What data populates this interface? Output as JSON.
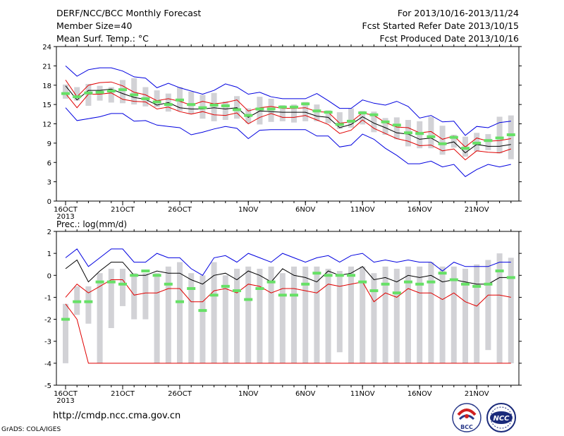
{
  "header": {
    "title": "DERF/NCC/BCC Monthly Forecast",
    "member_size": "Member Size=40",
    "variable": "Mean Surf. Temp.: °C",
    "period": "For 2013/10/16-2013/11/24",
    "start_ref": "Fcst Started Refer Date 2013/10/15",
    "produced": "Fcst Produced Date 2013/10/16"
  },
  "footer": {
    "url": "http://cmdp.ncc.cma.gov.cn",
    "grads": "GrADS: COLA/IGES"
  },
  "logos": [
    {
      "name": "bcc-logo",
      "text": "BCC"
    },
    {
      "name": "ncc-logo",
      "text": "NCC"
    }
  ],
  "colors": {
    "box": "#d2d2d6",
    "green": "#66e066",
    "blue": "#0000e0",
    "red": "#e00000",
    "black": "#000000"
  },
  "chart_data": [
    {
      "type": "line",
      "title": "Mean Surf. Temp.: °C",
      "x": [
        "2013-10-16",
        "2013-10-17",
        "2013-10-18",
        "2013-10-19",
        "2013-10-20",
        "2013-10-21",
        "2013-10-22",
        "2013-10-23",
        "2013-10-24",
        "2013-10-25",
        "2013-10-26",
        "2013-10-27",
        "2013-10-28",
        "2013-10-29",
        "2013-10-30",
        "2013-10-31",
        "2013-11-01",
        "2013-11-02",
        "2013-11-03",
        "2013-11-04",
        "2013-11-05",
        "2013-11-06",
        "2013-11-07",
        "2013-11-08",
        "2013-11-09",
        "2013-11-10",
        "2013-11-11",
        "2013-11-12",
        "2013-11-13",
        "2013-11-14",
        "2013-11-15",
        "2013-11-16",
        "2013-11-17",
        "2013-11-18",
        "2013-11-19",
        "2013-11-20",
        "2013-11-21",
        "2013-11-22",
        "2013-11-23",
        "2013-11-24"
      ],
      "ylim": [
        0,
        24
      ],
      "yticks": [
        0,
        3,
        6,
        9,
        12,
        15,
        18,
        21,
        24
      ],
      "xtick_labels": [
        {
          "x": "2013-10-16",
          "label": "16OCT",
          "sub": "2013"
        },
        {
          "x": "2013-10-21",
          "label": "21OCT"
        },
        {
          "x": "2013-10-26",
          "label": "26OCT"
        },
        {
          "x": "2013-11-01",
          "label": "1NOV"
        },
        {
          "x": "2013-11-06",
          "label": "6NOV"
        },
        {
          "x": "2013-11-11",
          "label": "11NOV"
        },
        {
          "x": "2013-11-16",
          "label": "16NOV"
        },
        {
          "x": "2013-11-21",
          "label": "21NOV"
        }
      ],
      "box_low": [
        15.9,
        15.6,
        14.8,
        15.6,
        15.3,
        15.2,
        15.0,
        14.7,
        14.6,
        13.9,
        14.0,
        13.5,
        12.8,
        12.4,
        12.6,
        12.8,
        12.1,
        11.9,
        12.3,
        12.4,
        12.2,
        12.4,
        12.4,
        12.1,
        11.2,
        11.4,
        11.9,
        10.7,
        10.3,
        9.6,
        8.5,
        8.2,
        8.2,
        7.2,
        8.3,
        6.9,
        7.7,
        7.9,
        7.4,
        6.5
      ],
      "box_high": [
        18.1,
        17.7,
        18.2,
        17.9,
        17.7,
        18.8,
        19.1,
        17.7,
        17.2,
        16.7,
        17.7,
        17.0,
        16.5,
        16.8,
        15.5,
        16.3,
        14.4,
        16.2,
        15.9,
        14.9,
        15.0,
        15.4,
        15.0,
        14.1,
        13.8,
        14.4,
        14.0,
        13.9,
        12.9,
        13.0,
        12.6,
        12.4,
        13.1,
        11.7,
        10.3,
        10.0,
        10.6,
        10.4,
        13.1,
        13.3
      ],
      "series": [
        {
          "role": "max",
          "color": "blue",
          "values": [
            21.0,
            19.4,
            20.4,
            20.7,
            20.7,
            20.2,
            19.3,
            19.1,
            17.6,
            18.3,
            17.6,
            17.1,
            16.6,
            17.2,
            18.2,
            17.7,
            16.6,
            16.9,
            16.2,
            15.9,
            15.9,
            15.9,
            16.7,
            15.6,
            14.4,
            14.4,
            15.7,
            15.2,
            14.9,
            15.5,
            14.7,
            12.9,
            13.3,
            12.3,
            12.4,
            10.2,
            11.6,
            11.4,
            12.2,
            12.4
          ]
        },
        {
          "role": "upper",
          "color": "red",
          "values": [
            18.8,
            16.2,
            18.0,
            18.4,
            18.5,
            17.9,
            16.9,
            16.5,
            15.6,
            15.9,
            15.5,
            14.9,
            15.5,
            15.1,
            15.3,
            15.7,
            14.0,
            14.5,
            14.7,
            14.4,
            14.4,
            14.5,
            13.9,
            13.8,
            12.1,
            12.3,
            13.7,
            13.3,
            12.2,
            11.5,
            11.4,
            10.6,
            10.8,
            9.6,
            10.1,
            8.4,
            9.8,
            9.3,
            9.4,
            9.7
          ]
        },
        {
          "role": "mean",
          "color": "black",
          "values": [
            17.9,
            15.7,
            17.2,
            17.2,
            17.4,
            16.7,
            16.1,
            15.8,
            14.9,
            15.3,
            14.5,
            14.3,
            14.3,
            14.5,
            14.3,
            14.5,
            13.0,
            14.0,
            13.9,
            13.8,
            13.8,
            13.8,
            13.2,
            13.0,
            11.4,
            11.9,
            13.1,
            12.1,
            11.4,
            10.6,
            10.4,
            9.6,
            9.8,
            8.8,
            9.2,
            7.5,
            8.8,
            8.5,
            8.5,
            8.8
          ]
        },
        {
          "role": "lower",
          "color": "red",
          "values": [
            16.7,
            14.5,
            16.6,
            16.6,
            16.8,
            15.8,
            15.5,
            15.4,
            14.3,
            14.6,
            13.9,
            13.5,
            13.9,
            13.4,
            13.3,
            13.7,
            12.0,
            13.0,
            13.6,
            13.0,
            13.0,
            13.3,
            12.6,
            11.9,
            10.5,
            11.0,
            12.6,
            11.3,
            10.5,
            9.7,
            9.3,
            8.6,
            8.7,
            7.8,
            8.1,
            6.4,
            7.8,
            7.6,
            7.5,
            8.1
          ]
        },
        {
          "role": "min",
          "color": "blue",
          "values": [
            14.5,
            12.5,
            12.8,
            13.1,
            13.6,
            13.6,
            12.4,
            12.5,
            11.8,
            11.6,
            11.4,
            10.3,
            10.7,
            11.2,
            11.6,
            11.3,
            9.7,
            11.0,
            11.1,
            11.1,
            11.1,
            11.1,
            10.1,
            10.1,
            8.4,
            8.7,
            10.4,
            9.6,
            8.2,
            7.1,
            5.8,
            5.8,
            6.2,
            5.3,
            5.7,
            3.8,
            4.9,
            5.7,
            5.3,
            5.7
          ]
        },
        {
          "role": "green",
          "color": "green",
          "values": [
            16.7,
            16.2,
            16.8,
            16.9,
            17.1,
            17.3,
            16.5,
            15.9,
            15.4,
            15.0,
            15.7,
            15.0,
            14.5,
            14.9,
            14.8,
            14.2,
            13.3,
            14.3,
            14.3,
            14.6,
            14.6,
            15.1,
            14.0,
            13.8,
            11.9,
            12.4,
            13.7,
            13.4,
            12.3,
            11.8,
            10.6,
            10.5,
            10.0,
            8.9,
            9.9,
            8.2,
            9.0,
            9.4,
            9.8,
            10.3
          ]
        }
      ]
    },
    {
      "type": "line",
      "title": "Prec.: log(mm/d)",
      "x": [
        "2013-10-16",
        "2013-10-17",
        "2013-10-18",
        "2013-10-19",
        "2013-10-20",
        "2013-10-21",
        "2013-10-22",
        "2013-10-23",
        "2013-10-24",
        "2013-10-25",
        "2013-10-26",
        "2013-10-27",
        "2013-10-28",
        "2013-10-29",
        "2013-10-30",
        "2013-10-31",
        "2013-11-01",
        "2013-11-02",
        "2013-11-03",
        "2013-11-04",
        "2013-11-05",
        "2013-11-06",
        "2013-11-07",
        "2013-11-08",
        "2013-11-09",
        "2013-11-10",
        "2013-11-11",
        "2013-11-12",
        "2013-11-13",
        "2013-11-14",
        "2013-11-15",
        "2013-11-16",
        "2013-11-17",
        "2013-11-18",
        "2013-11-19",
        "2013-11-20",
        "2013-11-21",
        "2013-11-22",
        "2013-11-23",
        "2013-11-24"
      ],
      "ylim": [
        -5,
        2
      ],
      "yticks": [
        -5,
        -4,
        -3,
        -2,
        -1,
        0,
        1,
        2
      ],
      "xtick_labels": [
        {
          "x": "2013-10-16",
          "label": "16OCT",
          "sub": "2013"
        },
        {
          "x": "2013-10-21",
          "label": "21OCT"
        },
        {
          "x": "2013-10-26",
          "label": "26OCT"
        },
        {
          "x": "2013-11-01",
          "label": "1NOV"
        },
        {
          "x": "2013-11-06",
          "label": "6NOV"
        },
        {
          "x": "2013-11-11",
          "label": "11NOV"
        },
        {
          "x": "2013-11-16",
          "label": "16NOV"
        },
        {
          "x": "2013-11-21",
          "label": "21NOV"
        }
      ],
      "box_low": [
        -4.0,
        -1.8,
        -2.2,
        -4.0,
        -2.4,
        -1.4,
        -2.0,
        -2.0,
        -4.0,
        -4.0,
        -4.0,
        -4.0,
        -4.0,
        -4.0,
        -4.0,
        -4.0,
        -4.0,
        -4.0,
        -4.0,
        -4.0,
        -4.0,
        -4.0,
        -4.0,
        -4.0,
        -3.5,
        -4.0,
        -4.0,
        -4.0,
        -4.0,
        -4.0,
        -4.0,
        -4.0,
        -4.0,
        -4.0,
        -4.0,
        -4.0,
        -4.0,
        -3.4,
        -4.0,
        -4.0
      ],
      "box_high": [
        -1.3,
        -0.5,
        -0.5,
        0.1,
        0.3,
        0.3,
        0.1,
        0.1,
        0.1,
        0.4,
        0.6,
        0.1,
        0.0,
        0.6,
        0.0,
        0.3,
        0.4,
        0.3,
        0.4,
        0.1,
        0.4,
        0.4,
        0.4,
        0.3,
        0.2,
        0.4,
        0.4,
        0.1,
        0.4,
        0.3,
        0.4,
        0.4,
        0.6,
        0.4,
        0.4,
        0.3,
        0.5,
        0.7,
        1.0,
        0.8
      ],
      "series": [
        {
          "role": "max",
          "color": "blue",
          "values": [
            0.8,
            1.2,
            0.4,
            0.8,
            1.2,
            1.2,
            0.6,
            0.6,
            1.0,
            0.8,
            0.8,
            0.3,
            0.0,
            0.8,
            0.9,
            0.6,
            1.0,
            0.8,
            0.6,
            1.0,
            0.8,
            0.6,
            0.8,
            0.9,
            0.6,
            0.9,
            1.0,
            0.6,
            0.7,
            0.6,
            0.7,
            0.6,
            0.6,
            0.2,
            0.6,
            0.4,
            0.4,
            0.4,
            0.6,
            0.6
          ]
        },
        {
          "role": "upper",
          "color": "black",
          "values": [
            0.3,
            0.7,
            -0.3,
            0.2,
            0.6,
            0.6,
            0.0,
            0.0,
            0.2,
            0.1,
            0.1,
            -0.2,
            -0.4,
            0.0,
            0.1,
            -0.2,
            0.2,
            0.0,
            -0.3,
            0.3,
            0.0,
            -0.1,
            -0.3,
            0.2,
            0.0,
            0.1,
            0.4,
            -0.2,
            -0.1,
            -0.3,
            0.0,
            -0.1,
            0.0,
            -0.3,
            -0.2,
            -0.3,
            -0.4,
            -0.4,
            -0.1,
            -0.1
          ]
        },
        {
          "role": "lower",
          "color": "red",
          "values": [
            -1.0,
            -0.4,
            -0.8,
            -0.5,
            -0.2,
            -0.2,
            -0.9,
            -0.8,
            -0.8,
            -0.6,
            -0.6,
            -1.2,
            -1.2,
            -0.7,
            -0.6,
            -0.8,
            -0.4,
            -0.5,
            -0.8,
            -0.6,
            -0.6,
            -0.7,
            -0.8,
            -0.4,
            -0.5,
            -0.4,
            -0.3,
            -1.2,
            -0.8,
            -1.0,
            -0.6,
            -0.8,
            -0.8,
            -1.1,
            -0.8,
            -1.2,
            -1.4,
            -0.9,
            -0.9,
            -1.0
          ]
        },
        {
          "role": "min",
          "color": "red",
          "values": [
            -1.3,
            -2.0,
            -4.0,
            -4.0,
            -4.0,
            -4.0,
            -4.0,
            -4.0,
            -4.0,
            -4.0,
            -4.0,
            -4.0,
            -4.0,
            -4.0,
            -4.0,
            -4.0,
            -4.0,
            -4.0,
            -4.0,
            -4.0,
            -4.0,
            -4.0,
            -4.0,
            -4.0,
            -4.0,
            -4.0,
            -4.0,
            -4.0,
            -4.0,
            -4.0,
            -4.0,
            -4.0,
            -4.0,
            -4.0,
            -4.0,
            -4.0,
            -4.0,
            -4.0,
            -4.0,
            -4.0
          ]
        },
        {
          "role": "green",
          "color": "green",
          "values": [
            -2.0,
            -1.2,
            -1.2,
            -0.3,
            -0.3,
            -0.4,
            0.0,
            0.2,
            0.0,
            -0.4,
            -1.2,
            -0.6,
            -1.6,
            -0.9,
            -0.5,
            -0.7,
            -1.1,
            -0.6,
            -0.3,
            -0.9,
            -0.9,
            -0.4,
            0.1,
            0.0,
            0.0,
            0.0,
            -0.3,
            -0.7,
            -0.4,
            -0.8,
            -0.3,
            -0.4,
            -0.3,
            0.1,
            -0.2,
            -0.4,
            -0.5,
            -0.4,
            0.2,
            -0.1
          ]
        }
      ]
    }
  ]
}
